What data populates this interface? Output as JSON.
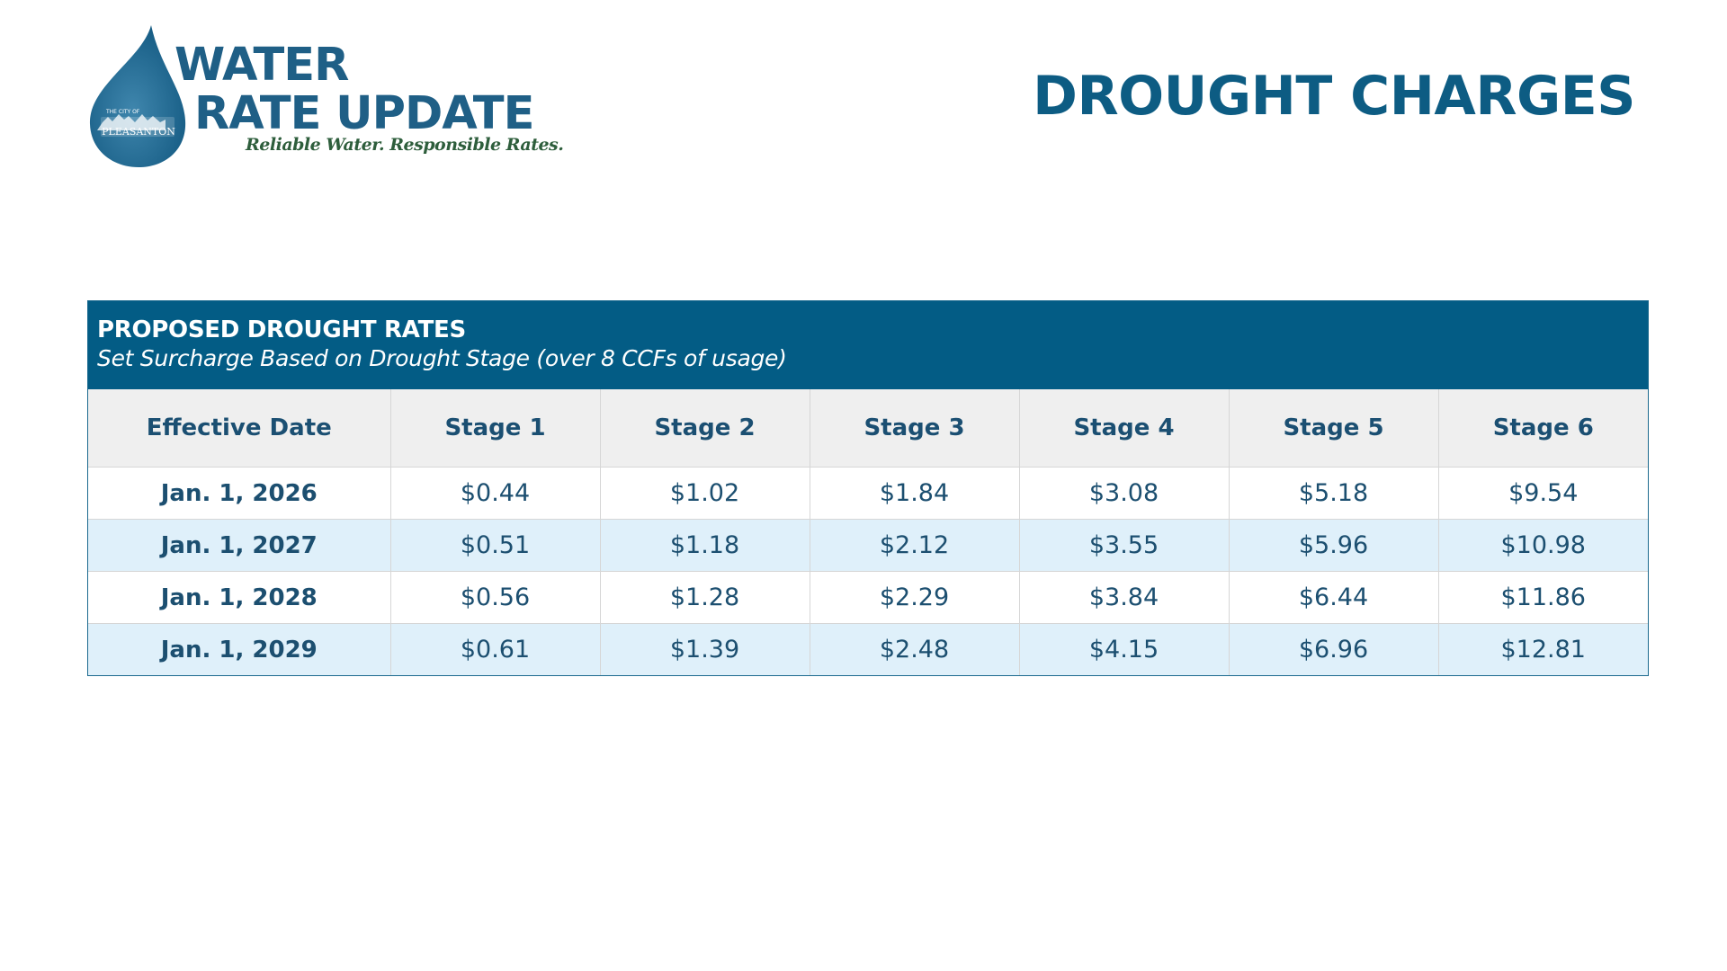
{
  "logo": {
    "line1": "WATER",
    "line2": "RATE UPDATE",
    "tagline": "Reliable Water. Responsible Rates.",
    "city_small": "THE CITY OF",
    "city_name": "PLEASANTON"
  },
  "page_title": "DROUGHT CHARGES",
  "table": {
    "title": "PROPOSED DROUGHT RATES",
    "subtitle": "Set Surcharge Based on Drought Stage (over 8 CCFs of usage)",
    "headers": [
      "Effective Date",
      "Stage 1",
      "Stage 2",
      "Stage 3",
      "Stage 4",
      "Stage 5",
      "Stage 6"
    ],
    "rows": [
      {
        "date": "Jan. 1, 2026",
        "values": [
          "$0.44",
          "$1.02",
          "$1.84",
          "$3.08",
          "$5.18",
          "$9.54"
        ]
      },
      {
        "date": "Jan. 1, 2027",
        "values": [
          "$0.51",
          "$1.18",
          "$2.12",
          "$3.55",
          "$5.96",
          "$10.98"
        ]
      },
      {
        "date": "Jan. 1, 2028",
        "values": [
          "$0.56",
          "$1.28",
          "$2.29",
          "$3.84",
          "$6.44",
          "$11.86"
        ]
      },
      {
        "date": "Jan. 1, 2029",
        "values": [
          "$0.61",
          "$1.39",
          "$2.48",
          "$4.15",
          "$6.96",
          "$12.81"
        ]
      }
    ]
  },
  "colors": {
    "brand_blue": "#035c85",
    "title_blue": "#0d5c83",
    "alt_row": "#dff0fa",
    "header_row": "#efefef",
    "tagline_green": "#2e5e3c"
  }
}
